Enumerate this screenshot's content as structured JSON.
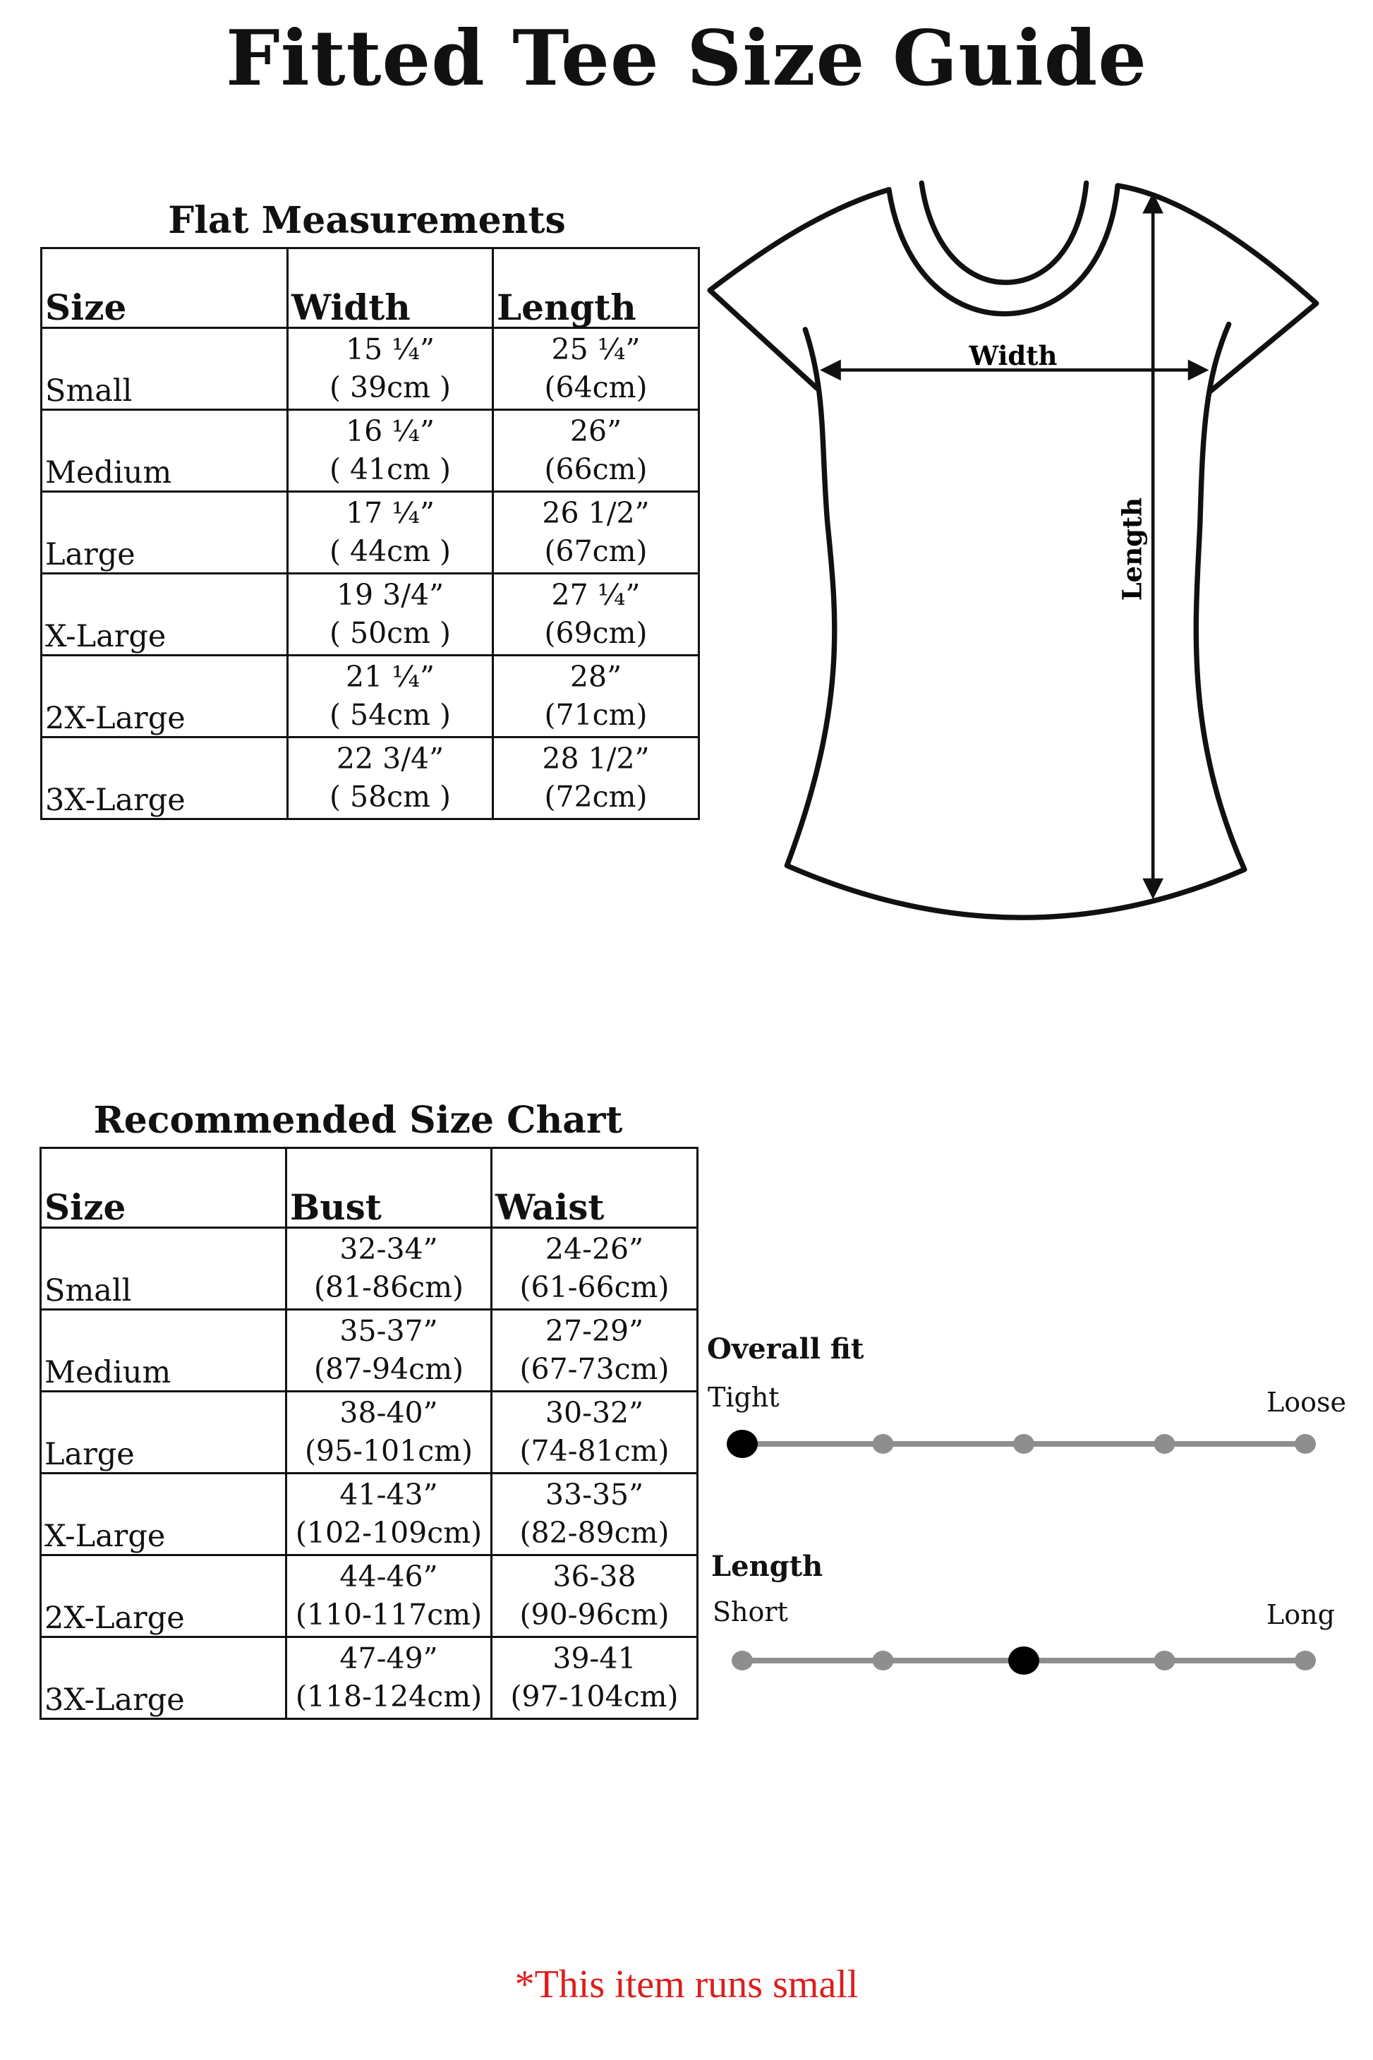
{
  "title": "Fitted Tee Size Guide",
  "flat": {
    "heading": "Flat Measurements",
    "headers": [
      "Size",
      "Width",
      "Length"
    ],
    "rows": [
      {
        "size": "Small",
        "width_in": "15 ¼”",
        "width_cm": "( 39cm )",
        "length_in": "25 ¼”",
        "length_cm": "(64cm)"
      },
      {
        "size": "Medium",
        "width_in": "16 ¼”",
        "width_cm": "( 41cm )",
        "length_in": "26”",
        "length_cm": "(66cm)"
      },
      {
        "size": "Large",
        "width_in": "17 ¼”",
        "width_cm": "( 44cm )",
        "length_in": "26 1/2”",
        "length_cm": "(67cm)"
      },
      {
        "size": "X-Large",
        "width_in": "19 3/4”",
        "width_cm": "( 50cm )",
        "length_in": "27 ¼”",
        "length_cm": "(69cm)"
      },
      {
        "size": "2X-Large",
        "width_in": "21 ¼”",
        "width_cm": "( 54cm )",
        "length_in": "28”",
        "length_cm": "(71cm)"
      },
      {
        "size": "3X-Large",
        "width_in": "22 3/4”",
        "width_cm": "( 58cm )",
        "length_in": "28 1/2”",
        "length_cm": "(72cm)"
      }
    ]
  },
  "diagram": {
    "width_label": "Width",
    "length_label": "Length"
  },
  "recommended": {
    "heading": "Recommended Size Chart",
    "headers": [
      "Size",
      "Bust",
      "Waist"
    ],
    "rows": [
      {
        "size": "Small",
        "bust_in": "32-34”",
        "bust_cm": "(81-86cm)",
        "waist_in": "24-26”",
        "waist_cm": "(61-66cm)"
      },
      {
        "size": "Medium",
        "bust_in": "35-37”",
        "bust_cm": "(87-94cm)",
        "waist_in": "27-29”",
        "waist_cm": "(67-73cm)"
      },
      {
        "size": "Large",
        "bust_in": "38-40”",
        "bust_cm": "(95-101cm)",
        "waist_in": "30-32”",
        "waist_cm": "(74-81cm)"
      },
      {
        "size": "X-Large",
        "bust_in": "41-43”",
        "bust_cm": "(102-109cm)",
        "waist_in": "33-35”",
        "waist_cm": "(82-89cm)"
      },
      {
        "size": "2X-Large",
        "bust_in": "44-46”",
        "bust_cm": "(110-117cm)",
        "waist_in": "36-38",
        "waist_cm": "(90-96cm)"
      },
      {
        "size": "3X-Large",
        "bust_in": "47-49”",
        "bust_cm": "(118-124cm)",
        "waist_in": "39-41",
        "waist_cm": "(97-104cm)"
      }
    ]
  },
  "fit_scales": [
    {
      "title": "Overall fit",
      "min_label": "Tight",
      "max_label": "Loose",
      "steps": 5,
      "selected": 1
    },
    {
      "title": "Length",
      "min_label": "Short",
      "max_label": "Long",
      "steps": 5,
      "selected": 3
    }
  ],
  "colors": {
    "selected_dot": "#000000",
    "scale": "#8e8e8e",
    "note": "#d9201e"
  },
  "note": "*This item runs small"
}
